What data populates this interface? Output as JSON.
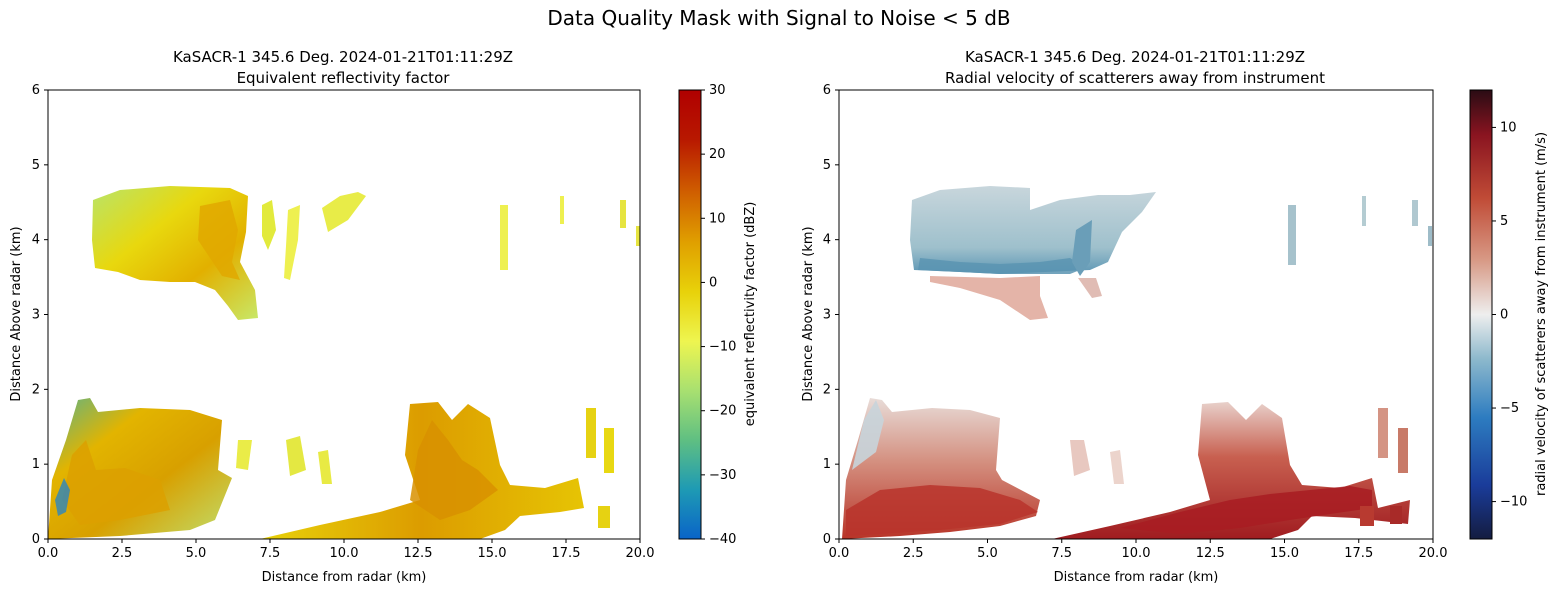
{
  "suptitle": "Data Quality Mask with Signal to Noise < 5 dB",
  "chart_data": [
    {
      "type": "heatmap",
      "title_line1": "KaSACR-1 345.6 Deg. 2024-01-21T01:11:29Z",
      "title_line2": "Equivalent reflectivity factor",
      "xlabel": "Distance from radar (km)",
      "ylabel": "Distance Above radar  (km)",
      "xlim": [
        0,
        20
      ],
      "ylim": [
        0,
        6
      ],
      "xticks": [
        "0.0",
        "2.5",
        "5.0",
        "7.5",
        "10.0",
        "12.5",
        "15.0",
        "17.5",
        "20.0"
      ],
      "yticks": [
        "0",
        "1",
        "2",
        "3",
        "4",
        "5",
        "6"
      ],
      "colorbar": {
        "label": "equivalent reflectivity factor (dBZ)",
        "range": [
          -40,
          30
        ],
        "ticks": [
          "30",
          "20",
          "10",
          "0",
          "−10",
          "−20",
          "−30",
          "−40"
        ],
        "colormap": [
          "#0a64c8",
          "#1e9ab4",
          "#5fbf82",
          "#a8e070",
          "#eef550",
          "#e8d20a",
          "#e0a000",
          "#d06000",
          "#b81800",
          "#b00000"
        ]
      },
      "regions": [
        {
          "name": "upper cloud layer",
          "x_range_km": [
            1.9,
            6.4
          ],
          "z_range_km": [
            2.9,
            4.7
          ],
          "value_dbz": [
            -20,
            0
          ]
        },
        {
          "name": "upper cloud fragments",
          "x_range_km": [
            7.8,
            10.7
          ],
          "z_range_km": [
            3.4,
            4.6
          ],
          "value_dbz": [
            -15,
            -5
          ]
        },
        {
          "name": "lower near-radar echoes",
          "x_range_km": [
            0.2,
            7.0
          ],
          "z_range_km": [
            0.0,
            1.9
          ],
          "value_dbz": [
            -35,
            0
          ]
        },
        {
          "name": "lower far-range echoes",
          "x_range_km": [
            8.5,
            19.2
          ],
          "z_range_km": [
            0.0,
            1.8
          ],
          "value_dbz": [
            -10,
            5
          ]
        }
      ]
    },
    {
      "type": "heatmap",
      "title_line1": "KaSACR-1 345.6 Deg. 2024-01-21T01:11:29Z",
      "title_line2": "Radial velocity of scatterers away from instrument",
      "xlabel": "Distance from radar (km)",
      "ylabel": "Distance Above radar  (km)",
      "xlim": [
        0,
        20
      ],
      "ylim": [
        0,
        6
      ],
      "xticks": [
        "0.0",
        "2.5",
        "5.0",
        "7.5",
        "10.0",
        "12.5",
        "15.0",
        "17.5",
        "20.0"
      ],
      "yticks": [
        "0",
        "1",
        "2",
        "3",
        "4",
        "5",
        "6"
      ],
      "colorbar": {
        "label": "radial velocity of scatterers away from instrument (m/s)",
        "range": [
          -12,
          12
        ],
        "ticks": [
          "10",
          "5",
          "0",
          "−5",
          "−10"
        ],
        "colormap": [
          "#141c40",
          "#1a3c9a",
          "#2d7cc0",
          "#8cb8cc",
          "#eeeeee",
          "#d89a86",
          "#c04b36",
          "#8a1420",
          "#2a0c14"
        ]
      },
      "regions": [
        {
          "name": "upper layer approaching",
          "x_range_km": [
            2.4,
            10.7
          ],
          "z_range_km": [
            3.6,
            4.7
          ],
          "value_ms": [
            -4,
            -1
          ]
        },
        {
          "name": "upper layer base receding",
          "x_range_km": [
            2.7,
            7.1
          ],
          "z_range_km": [
            2.9,
            3.6
          ],
          "value_ms": [
            1,
            2
          ]
        },
        {
          "name": "lower near-radar receding",
          "x_range_km": [
            0.2,
            6.8
          ],
          "z_range_km": [
            0.0,
            1.0
          ],
          "value_ms": [
            2,
            7
          ]
        },
        {
          "name": "lower far-range receding",
          "x_range_km": [
            8.5,
            19.0
          ],
          "z_range_km": [
            0.0,
            0.7
          ],
          "value_ms": [
            5,
            9
          ]
        }
      ]
    }
  ]
}
